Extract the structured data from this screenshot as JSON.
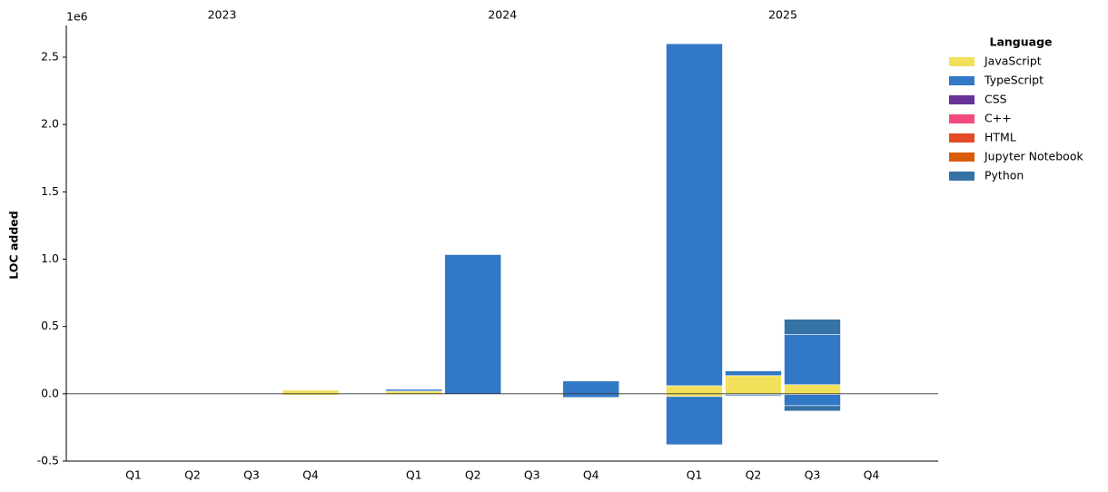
{
  "chart_data": {
    "type": "stacked-bar",
    "ylabel": "LOC added",
    "offset_text": "1e6",
    "years": [
      "2023",
      "2024",
      "2025"
    ],
    "categories": [
      "Q1",
      "Q2",
      "Q3",
      "Q4",
      "Q1",
      "Q2",
      "Q3",
      "Q4",
      "Q1",
      "Q2",
      "Q3",
      "Q4"
    ],
    "legend_title": "Language",
    "legend_position": "outside-upper-right",
    "series": [
      {
        "name": "JavaScript",
        "color": "#f1e05a",
        "values": [
          0,
          0,
          0,
          0.027,
          0.02,
          0,
          0,
          0,
          0.06,
          0.135,
          0.068,
          0
        ],
        "negative_values": [
          0,
          0,
          0,
          -0.01,
          -0.005,
          0,
          0,
          0,
          -0.02,
          -0.005,
          -0.005,
          0
        ]
      },
      {
        "name": "TypeScript",
        "color": "#3178c6",
        "values": [
          0,
          0,
          0,
          0,
          0.014,
          1.034,
          0,
          0.095,
          2.54,
          0.035,
          0.372,
          0
        ],
        "negative_values": [
          0,
          0,
          0,
          0,
          0,
          -0.003,
          0,
          -0.027,
          -0.358,
          -0.01,
          -0.083,
          0
        ]
      },
      {
        "name": "CSS",
        "color": "#663399",
        "values": [
          0,
          0,
          0,
          0,
          0,
          0,
          0.004,
          0,
          0,
          0,
          0,
          0
        ],
        "negative_values": [
          0,
          0,
          0,
          0,
          0,
          0,
          0,
          0,
          0,
          0,
          0,
          0
        ]
      },
      {
        "name": "C++",
        "color": "#f34b7d",
        "values": [
          0,
          0,
          0,
          0,
          0,
          0,
          0.003,
          0,
          0,
          0,
          0,
          0
        ],
        "negative_values": [
          0,
          0,
          0,
          0,
          0,
          0,
          -0.002,
          0,
          0,
          0,
          0,
          0
        ]
      },
      {
        "name": "HTML",
        "color": "#e34c26",
        "values": [
          0,
          0,
          0,
          0,
          0,
          0,
          0,
          0,
          0,
          0,
          0,
          0
        ],
        "negative_values": [
          0,
          0,
          0,
          0,
          0,
          0,
          0,
          0,
          0,
          0,
          0,
          0
        ]
      },
      {
        "name": "Jupyter Notebook",
        "color": "#da5b0b",
        "values": [
          0,
          0,
          0,
          0,
          0,
          0,
          0,
          0,
          0,
          0,
          0,
          0
        ],
        "negative_values": [
          0,
          0,
          0,
          0,
          0,
          0,
          0,
          0,
          0,
          0,
          0,
          0
        ]
      },
      {
        "name": "Python",
        "color": "#3572a5",
        "values": [
          0,
          0,
          0,
          0,
          0,
          0,
          0,
          0,
          0,
          0,
          0.114,
          0
        ],
        "negative_values": [
          0,
          0,
          0,
          0,
          0,
          0,
          0,
          0,
          0,
          -0.005,
          -0.04,
          0
        ]
      }
    ],
    "ylim": [
      -0.5,
      2.736
    ],
    "yticks": [
      -0.5,
      {
        "value": 0,
        "label": "0.0"
      },
      0.5,
      {
        "value": 1,
        "label": "1.0"
      },
      1.5,
      {
        "value": 2,
        "label": "2.0"
      },
      2.5
    ],
    "zero_line": true
  }
}
